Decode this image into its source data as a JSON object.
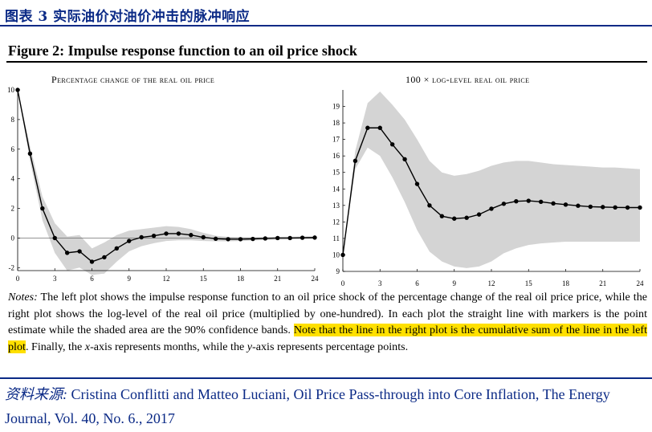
{
  "header": {
    "title": "图表 3   实际油价对油价冲击的脉冲响应",
    "color": "#0b2a86"
  },
  "figure": {
    "title": "Figure 2: Impulse response function to an oil price shock"
  },
  "notes": {
    "prefix": "Notes:",
    "text1": " The left plot shows the impulse response function to an oil price shock of the percentage change of the real oil price price, while the right plot shows the log-level of the real oil price (multiplied by one-hundred). In each plot the straight line with markers is the point estimate while the shaded area are the 90% confidence bands. ",
    "highlight": "Note that the line in the right plot is the cumulative sum of the line in the left plot",
    "text2": ". Finally, the ",
    "xvar": "x",
    "text3": "-axis represents months, while the ",
    "yvar": "y",
    "text4": "-axis represents percentage points.",
    "highlight_color": "#ffe000"
  },
  "source": {
    "label": "资料来源:",
    "text": " Cristina Conflitti and Matteo Luciani, Oil Price Pass-through into Core Inflation, The Energy Journal, Vol. 40, No. 6., 2017"
  },
  "chart_data": [
    {
      "type": "line",
      "title": "Percentage change of the real oil price",
      "xlabel": "",
      "ylabel": "",
      "xlim": [
        0,
        24
      ],
      "ylim": [
        -2.2,
        10
      ],
      "xticks": [
        0,
        3,
        6,
        9,
        12,
        15,
        18,
        21,
        24
      ],
      "yticks": [
        -2,
        0,
        2,
        4,
        6,
        8,
        10
      ],
      "zero_line": true,
      "series": [
        {
          "name": "Point estimate",
          "x": [
            0,
            1,
            2,
            3,
            4,
            5,
            6,
            7,
            8,
            9,
            10,
            11,
            12,
            13,
            14,
            15,
            16,
            17,
            18,
            19,
            20,
            21,
            22,
            23,
            24
          ],
          "values": [
            10.0,
            5.7,
            2.0,
            0.0,
            -1.0,
            -0.9,
            -1.6,
            -1.3,
            -0.7,
            -0.2,
            0.05,
            0.15,
            0.3,
            0.3,
            0.2,
            0.05,
            -0.05,
            -0.08,
            -0.08,
            -0.06,
            -0.03,
            0.0,
            0.0,
            0.02,
            0.03
          ]
        }
      ],
      "band": {
        "name": "90% confidence band",
        "lower": [
          10.0,
          5.2,
          1.2,
          -1.0,
          -2.2,
          -2.0,
          -2.5,
          -2.4,
          -1.6,
          -0.9,
          -0.55,
          -0.35,
          -0.2,
          -0.15,
          -0.15,
          -0.2,
          -0.22,
          -0.22,
          -0.2,
          -0.17,
          -0.14,
          -0.12,
          -0.1,
          -0.08,
          -0.06
        ],
        "upper": [
          10.0,
          6.2,
          2.8,
          1.0,
          0.1,
          0.2,
          -0.7,
          -0.3,
          0.2,
          0.5,
          0.6,
          0.7,
          0.8,
          0.75,
          0.6,
          0.35,
          0.15,
          0.08,
          0.05,
          0.05,
          0.06,
          0.08,
          0.09,
          0.1,
          0.11
        ]
      },
      "colors": {
        "line": "#000000",
        "band": "#d4d4d4"
      }
    },
    {
      "type": "line",
      "title": "100 × log-level real oil price",
      "xlabel": "",
      "ylabel": "",
      "xlim": [
        0,
        24
      ],
      "ylim": [
        9,
        20
      ],
      "xticks": [
        0,
        3,
        6,
        9,
        12,
        15,
        18,
        21,
        24
      ],
      "yticks": [
        9,
        10,
        11,
        12,
        13,
        14,
        15,
        16,
        17,
        18,
        19
      ],
      "series": [
        {
          "name": "Point estimate",
          "x": [
            0,
            1,
            2,
            3,
            4,
            5,
            6,
            7,
            8,
            9,
            10,
            11,
            12,
            13,
            14,
            15,
            16,
            17,
            18,
            19,
            20,
            21,
            22,
            23,
            24
          ],
          "values": [
            10.0,
            15.7,
            17.7,
            17.7,
            16.7,
            15.8,
            14.3,
            13.0,
            12.35,
            12.2,
            12.25,
            12.45,
            12.8,
            13.1,
            13.25,
            13.28,
            13.22,
            13.12,
            13.05,
            12.98,
            12.92,
            12.9,
            12.88,
            12.87,
            12.87
          ]
        }
      ],
      "band": {
        "name": "90% confidence band",
        "lower": [
          10.0,
          15.2,
          16.5,
          16.0,
          14.7,
          13.2,
          11.5,
          10.2,
          9.6,
          9.3,
          9.2,
          9.3,
          9.6,
          10.1,
          10.4,
          10.6,
          10.7,
          10.75,
          10.8,
          10.8,
          10.8,
          10.8,
          10.8,
          10.8,
          10.8
        ],
        "upper": [
          10.0,
          16.3,
          19.2,
          19.9,
          19.1,
          18.2,
          17.0,
          15.7,
          15.0,
          14.8,
          14.9,
          15.1,
          15.4,
          15.6,
          15.7,
          15.7,
          15.6,
          15.5,
          15.45,
          15.4,
          15.35,
          15.3,
          15.3,
          15.25,
          15.2
        ]
      },
      "colors": {
        "line": "#000000",
        "band": "#d4d4d4"
      }
    }
  ]
}
